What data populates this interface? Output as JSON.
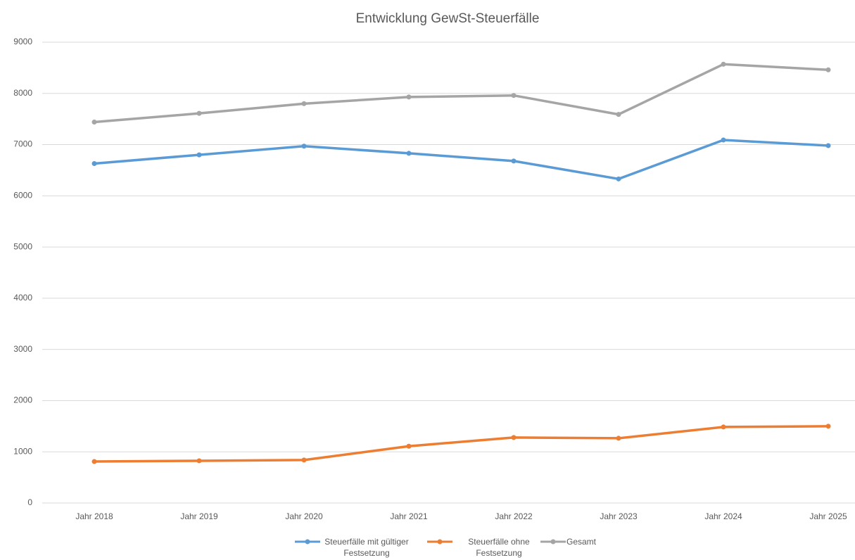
{
  "chart_data": {
    "type": "line",
    "title": "Entwicklung GewSt-Steuerfälle",
    "categories": [
      "Jahr 2018",
      "Jahr 2019",
      "Jahr 2020",
      "Jahr 2021",
      "Jahr 2022",
      "Jahr 2023",
      "Jahr 2024",
      "Jahr 2025"
    ],
    "series": [
      {
        "name": "Steuerfälle mit gültiger Festsetzung",
        "color": "#5b9bd5",
        "values": [
          6630,
          6800,
          6970,
          6830,
          6680,
          6330,
          7090,
          6980
        ]
      },
      {
        "name": "Steuerfälle ohne Festsetzung",
        "color": "#ed7d31",
        "values": [
          810,
          825,
          840,
          1110,
          1280,
          1265,
          1485,
          1500
        ]
      },
      {
        "name": "Gesamt",
        "color": "#a5a5a5",
        "values": [
          7440,
          7610,
          7800,
          7930,
          7960,
          7590,
          8570,
          8460
        ]
      }
    ],
    "ylim": [
      0,
      9000
    ],
    "yticks": [
      0,
      1000,
      2000,
      3000,
      4000,
      5000,
      6000,
      7000,
      8000,
      9000
    ],
    "grid": true,
    "legend": "bottom"
  }
}
